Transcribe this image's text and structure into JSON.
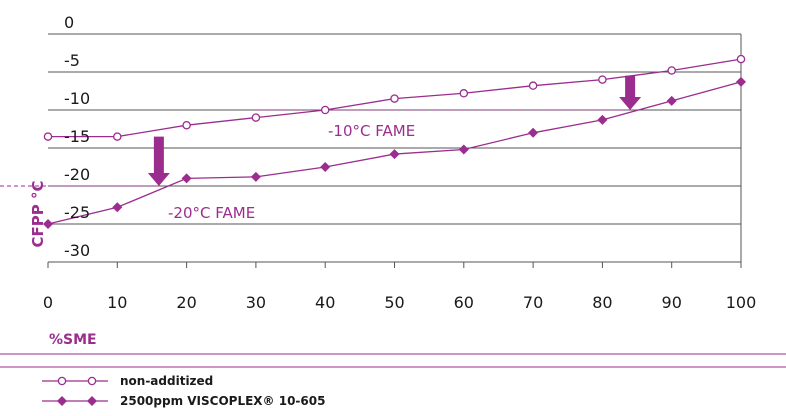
{
  "colors": {
    "series": "#9b2d8f",
    "grid": "#555555",
    "text": "#1a1a1a"
  },
  "chart_data": {
    "type": "line",
    "xlabel": "%SME",
    "ylabel": "CFPP °C",
    "xlim": [
      0,
      100
    ],
    "ylim": [
      -30,
      0
    ],
    "x_ticks": [
      "0",
      "10",
      "20",
      "30",
      "40",
      "50",
      "60",
      "70",
      "80",
      "90",
      "100"
    ],
    "y_ticks": [
      "0",
      "-5",
      "-10",
      "-15",
      "-20",
      "-25",
      "-30"
    ],
    "grid": "horizontal",
    "legend_position": "bottom-left",
    "series": [
      {
        "name": "non-additized",
        "marker": "circle-open",
        "x": [
          0,
          10,
          20,
          30,
          40,
          50,
          60,
          70,
          80,
          90,
          100
        ],
        "y": [
          -13.5,
          -13.5,
          -12,
          -11,
          -10,
          -8.5,
          -7.8,
          -6.8,
          -6,
          -4.8,
          -3.3
        ]
      },
      {
        "name": "2500ppm VISCOPLEX® 10-605",
        "marker": "diamond-filled",
        "x": [
          0,
          10,
          20,
          30,
          40,
          50,
          60,
          70,
          80,
          90,
          100
        ],
        "y": [
          -25,
          -22.8,
          -19,
          -18.8,
          -17.5,
          -15.8,
          -15.2,
          -13,
          -11.3,
          -8.8,
          -6.3
        ]
      }
    ],
    "annotations": [
      {
        "text": "-10°C FAME",
        "ref_y": -10,
        "from_x": 84,
        "arrow_x": 84,
        "arrow_from_y": -5.5,
        "arrow_to_y": -10
      },
      {
        "text": "-20°C FAME",
        "ref_y": -20,
        "from_x": 16,
        "arrow_x": 16,
        "arrow_from_y": -13.5,
        "arrow_to_y": -20
      }
    ]
  }
}
